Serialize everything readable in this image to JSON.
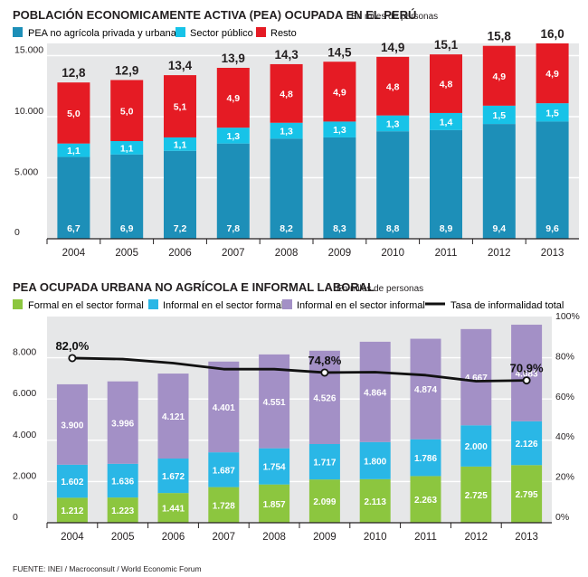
{
  "colors": {
    "pea_blue": "#1d8fb8",
    "sector_cyan": "#17c3e8",
    "resto_red": "#e51b24",
    "formal_green": "#8cc63f",
    "informal_formal_cyan": "#2ab7e6",
    "informal_informal_purple": "#a390c6",
    "rate_line": "#111111",
    "panel_bg": "#e6e7e8",
    "grid": "#ffffff"
  },
  "chart_data": [
    {
      "type": "bar",
      "stacked": true,
      "title": "POBLACIÓN ECONOMICAMENTE ACTIVA (PEA) OCUPADA EN EL PERÚ",
      "subtitle": "En miles de personas",
      "categories": [
        "2004",
        "2005",
        "2006",
        "2007",
        "2008",
        "2009",
        "2010",
        "2011",
        "2012",
        "2013"
      ],
      "series": [
        {
          "name": "PEA no agrícola privada y urbana",
          "values": [
            6.7,
            6.9,
            7.2,
            7.8,
            8.2,
            8.3,
            8.8,
            8.9,
            9.4,
            9.6
          ],
          "labels": [
            "6,7",
            "6,9",
            "7,2",
            "7,8",
            "8,2",
            "8,3",
            "8,8",
            "8,9",
            "9,4",
            "9,6"
          ]
        },
        {
          "name": "Sector público",
          "values": [
            1.1,
            1.1,
            1.1,
            1.3,
            1.3,
            1.3,
            1.3,
            1.4,
            1.5,
            1.5
          ],
          "labels": [
            "1,1",
            "1,1",
            "1,1",
            "1,3",
            "1,3",
            "1,3",
            "1,3",
            "1,4",
            "1,5",
            "1,5"
          ]
        },
        {
          "name": "Resto",
          "values": [
            5.0,
            5.0,
            5.1,
            4.9,
            4.8,
            4.9,
            4.8,
            4.8,
            4.9,
            4.9
          ],
          "labels": [
            "5,0",
            "5,0",
            "5,1",
            "4,9",
            "4,8",
            "4,9",
            "4,8",
            "4,8",
            "4,9",
            "4,9"
          ]
        }
      ],
      "totals": [
        "12,8",
        "12,9",
        "13,4",
        "13,9",
        "14,3",
        "14,5",
        "14,9",
        "15,1",
        "15,8",
        "16,0"
      ],
      "y_ticks": [
        "15.000",
        "10.000",
        "5.000",
        "0"
      ],
      "ylim": [
        0,
        16000
      ]
    },
    {
      "type": "bar",
      "stacked": true,
      "title": "PEA OCUPADA URBANA NO AGRÍCOLA E INFORMAL LABORAL",
      "subtitle": "En miles de personas",
      "categories": [
        "2004",
        "2005",
        "2006",
        "2007",
        "2008",
        "2009",
        "2010",
        "2011",
        "2012",
        "2013"
      ],
      "series": [
        {
          "name": "Formal en el sector formal",
          "values": [
            1212,
            1223,
            1441,
            1728,
            1857,
            2099,
            2113,
            2263,
            2725,
            2795
          ],
          "labels": [
            "1.212",
            "1.223",
            "1.441",
            "1.728",
            "1.857",
            "2.099",
            "2.113",
            "2.263",
            "2.725",
            "2.795"
          ]
        },
        {
          "name": "Informal en el sector formal",
          "values": [
            1602,
            1636,
            1672,
            1687,
            1754,
            1717,
            1800,
            1786,
            2000,
            2126
          ],
          "labels": [
            "1.602",
            "1.636",
            "1.672",
            "1.687",
            "1.754",
            "1.717",
            "1.800",
            "1.786",
            "2.000",
            "2.126"
          ]
        },
        {
          "name": "Informal en el sector informal",
          "values": [
            3900,
            3996,
            4121,
            4401,
            4551,
            4526,
            4864,
            4874,
            4667,
            4683
          ],
          "labels": [
            "3.900",
            "3.996",
            "4.121",
            "4.401",
            "4.551",
            "4.526",
            "4.864",
            "4.874",
            "4.667",
            "4.683"
          ]
        }
      ],
      "line": {
        "name": "Tasa de informalidad total",
        "values": [
          82.0,
          81.5,
          79.5,
          76.5,
          76.5,
          74.8,
          75.0,
          73.5,
          70.5,
          70.9
        ],
        "annotations": {
          "0": "82,0%",
          "5": "74,8%",
          "9": "70,9%"
        }
      },
      "y_ticks": [
        "8.000",
        "6.000",
        "4.000",
        "2.000",
        "0"
      ],
      "y2_ticks": [
        "100%",
        "80%",
        "60%",
        "40%",
        "20%",
        "0%"
      ],
      "ylim": [
        0,
        10000
      ],
      "y2lim": [
        0,
        100
      ]
    }
  ],
  "footer": {
    "source": "FUENTE: INEI / Macroconsult / World Economic Forum"
  }
}
